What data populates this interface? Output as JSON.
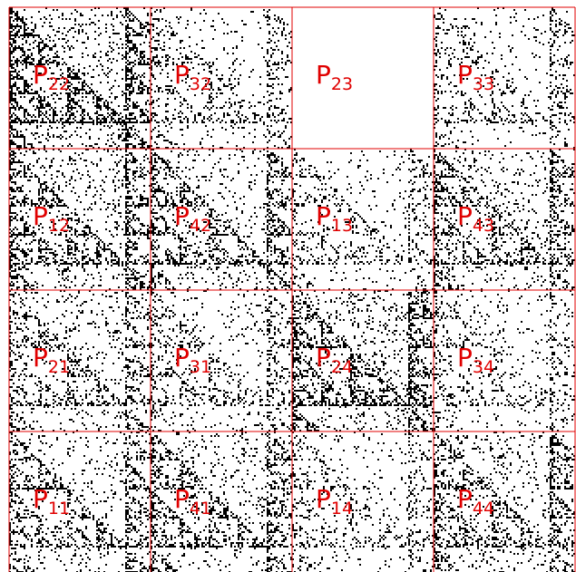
{
  "grid": {
    "rows": [
      [
        {
          "label": "P",
          "subscript": "22"
        },
        {
          "label": "P",
          "subscript": "32"
        },
        {
          "label": "P",
          "subscript": "23"
        },
        {
          "label": "P",
          "subscript": "33"
        }
      ],
      [
        {
          "label": "P",
          "subscript": "12"
        },
        {
          "label": "P",
          "subscript": "42"
        },
        {
          "label": "P",
          "subscript": "13"
        },
        {
          "label": "P",
          "subscript": "43"
        }
      ],
      [
        {
          "label": "P",
          "subscript": "21"
        },
        {
          "label": "P",
          "subscript": "31"
        },
        {
          "label": "P",
          "subscript": "24"
        },
        {
          "label": "P",
          "subscript": "34"
        }
      ],
      [
        {
          "label": "P",
          "subscript": "11"
        },
        {
          "label": "P",
          "subscript": "41"
        },
        {
          "label": "P",
          "subscript": "14"
        },
        {
          "label": "P",
          "subscript": "44"
        }
      ]
    ]
  }
}
